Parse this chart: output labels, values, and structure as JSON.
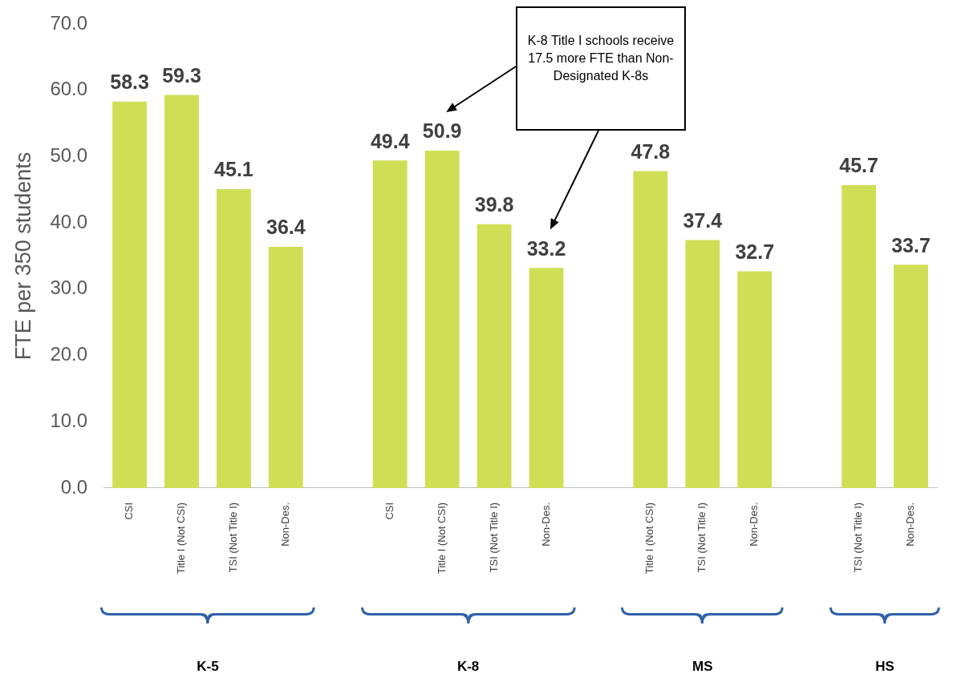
{
  "chart_data": {
    "type": "bar",
    "ylabel": "FTE per 350 students",
    "categories": [
      "CSI",
      "Title I (Not CSI)",
      "TSI (Not Title I)",
      "Non-Des.",
      null,
      "CSI",
      "Title I (Not CSI)",
      "TSI (Not Title I)",
      "Non-Des.",
      null,
      "Title I (Not CSI)",
      "TSI (Not Title I)",
      "Non-Des.",
      null,
      "TSI (Not Title I)",
      "Non-Des."
    ],
    "values": [
      58.3,
      59.3,
      45.1,
      36.4,
      null,
      49.4,
      50.9,
      39.8,
      33.2,
      null,
      47.8,
      37.4,
      32.7,
      null,
      45.7,
      33.7
    ],
    "color": "#cfdf55",
    "ylim": [
      0,
      70
    ],
    "yticks": [
      {
        "value": 0,
        "label": "0.0"
      },
      {
        "value": 10,
        "label": "10.0"
      },
      {
        "value": 20,
        "label": "20.0"
      },
      {
        "value": 30,
        "label": "30.0"
      },
      {
        "value": 40,
        "label": "40.0"
      },
      {
        "value": 50,
        "label": "50.0"
      },
      {
        "value": 60,
        "label": "60.0"
      },
      {
        "value": 70,
        "label": "70.0"
      }
    ],
    "grid": false,
    "legend": false,
    "data_labels": true,
    "annotations": [
      "K-8 Title I schools receive 17.5 more FTE than Non-Designated K-8s",
      "K-5",
      "K-8",
      "MS",
      "HS"
    ]
  }
}
